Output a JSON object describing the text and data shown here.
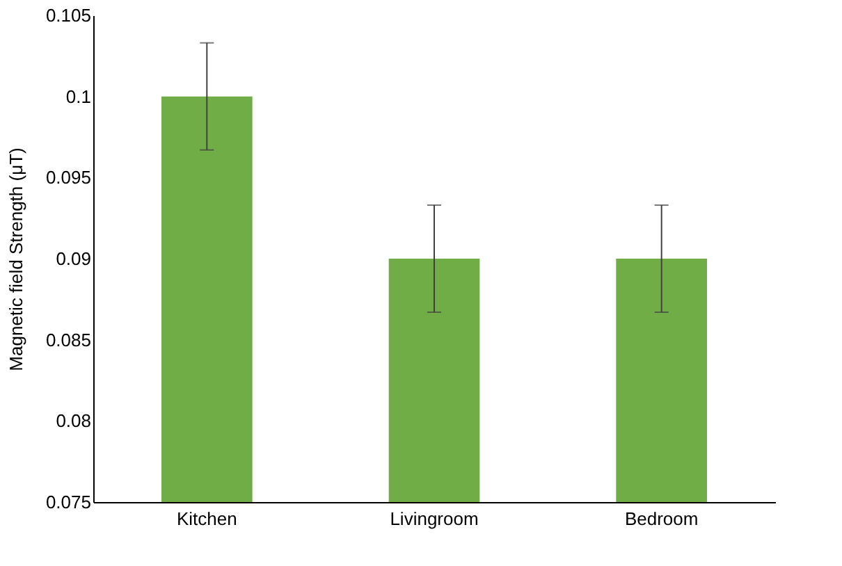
{
  "chart_data": {
    "type": "bar",
    "ylabel": "Magnetic field Strength (μT)",
    "categories": [
      "Kitchen",
      "Livingroom",
      "Bedroom"
    ],
    "values": [
      0.1,
      0.09,
      0.09
    ],
    "errors": [
      0.0033,
      0.0033,
      0.0033
    ],
    "color": "#70ad47",
    "ylim": [
      0.075,
      0.105
    ],
    "yticks": [
      0.075,
      0.08,
      0.085,
      0.09,
      0.095,
      0.1,
      0.105
    ],
    "grid": false
  }
}
